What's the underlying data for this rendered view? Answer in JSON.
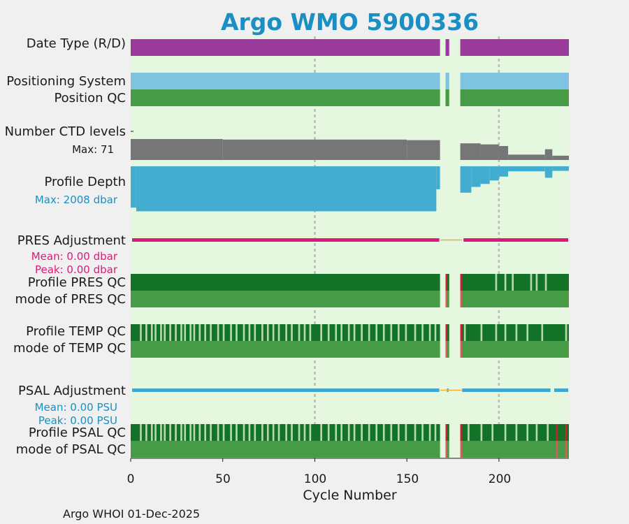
{
  "chart_data": {
    "type": "timeline",
    "title": "Argo WMO 5900336",
    "xlabel": "Cycle Number",
    "xlim": [
      0,
      238
    ],
    "xticks": [
      "0",
      "50",
      "100",
      "150",
      "200"
    ],
    "gridlines_x": [
      100,
      200
    ],
    "footer": "Argo WHOI 01-Dec-2025",
    "colors": {
      "background": "#e5f8df",
      "date_type": "#9a3b99",
      "positioning": "#7ec4e0",
      "qc_good": "#469b46",
      "qc_dark": "#127228",
      "qc_light": "#b6d9ac",
      "qc_bad": "#d21e32",
      "qc_bad_light": "#e05a5a",
      "ctd": "#767676",
      "depth": "#43acd1",
      "pres_adj": "#e3167a",
      "psal_adj": "#3fa8d0",
      "missing_link": "#f0b040",
      "grid": "#bbbbbb"
    },
    "data_gaps": [
      [
        168,
        171
      ],
      [
        173,
        179
      ]
    ],
    "data_gaps_pres_adj": [
      [
        168,
        180
      ]
    ],
    "rows": {
      "date_type": {
        "label": "Date Type (R/D)",
        "value": "D"
      },
      "positioning_system": {
        "label": "Positioning System"
      },
      "position_qc": {
        "label": "Position QC"
      },
      "ctd_levels": {
        "label": "Number CTD levels",
        "max_label": "Max: 71",
        "max": 71,
        "segments": [
          {
            "from": 1,
            "to": 50,
            "value": 39
          },
          {
            "from": 51,
            "to": 100,
            "value": 38
          },
          {
            "from": 101,
            "to": 150,
            "value": 38
          },
          {
            "from": 151,
            "to": 168,
            "value": 37
          },
          {
            "from": 180,
            "to": 190,
            "value": 31
          },
          {
            "from": 191,
            "to": 200,
            "value": 29
          },
          {
            "from": 201,
            "to": 205,
            "value": 26
          },
          {
            "from": 206,
            "to": 225,
            "value": 10
          },
          {
            "from": 226,
            "to": 229,
            "value": 20
          },
          {
            "from": 230,
            "to": 238,
            "value": 8
          }
        ]
      },
      "profile_depth": {
        "label": "Profile Depth",
        "max_label": "Max: 2008 dbar",
        "max": 2008,
        "segments": [
          {
            "from": 1,
            "to": 3,
            "value": 1800
          },
          {
            "from": 4,
            "to": 166,
            "value": 1960
          },
          {
            "from": 167,
            "to": 168,
            "value": 1000
          },
          {
            "from": 180,
            "to": 185,
            "value": 1150
          },
          {
            "from": 186,
            "to": 190,
            "value": 900
          },
          {
            "from": 191,
            "to": 195,
            "value": 770
          },
          {
            "from": 196,
            "to": 200,
            "value": 620
          },
          {
            "from": 201,
            "to": 205,
            "value": 450
          },
          {
            "from": 206,
            "to": 225,
            "value": 220
          },
          {
            "from": 226,
            "to": 229,
            "value": 500
          },
          {
            "from": 230,
            "to": 238,
            "value": 200
          }
        ]
      },
      "pres_adjustment": {
        "label": "PRES Adjustment",
        "mean_label": "Mean: 0.00 dbar",
        "peak_label": "Peak: 0.00 dbar",
        "mean": 0.0,
        "peak": 0.0
      },
      "profile_pres_qc": {
        "label": "Profile PRES QC"
      },
      "mode_pres_qc": {
        "label": "mode of PRES QC"
      },
      "profile_temp_qc": {
        "label": "Profile TEMP QC"
      },
      "mode_temp_qc": {
        "label": "mode of TEMP QC"
      },
      "psal_adjustment": {
        "label": "PSAL Adjustment",
        "mean_label": "Mean: 0.00 PSU",
        "peak_label": "Peak: 0.00 PSU",
        "mean": 0.0,
        "peak": 0.0
      },
      "profile_psal_qc": {
        "label": "Profile PSAL QC"
      },
      "mode_psal_qc": {
        "label": "mode of PSAL QC"
      }
    },
    "bad_cycles": [
      172,
      180
    ],
    "profile_pres_light_cycles": [
      199,
      204,
      208,
      218,
      226,
      221
    ],
    "profile_temp_light_cycles": [
      6,
      9,
      12,
      14,
      17,
      19,
      22,
      25,
      28,
      30,
      33,
      35,
      38,
      41,
      44,
      48,
      51,
      55,
      58,
      62,
      65,
      68,
      72,
      75,
      78,
      81,
      85,
      88,
      92,
      95,
      98,
      104,
      108,
      112,
      115,
      119,
      122,
      126,
      130,
      134,
      138,
      142,
      146,
      150,
      155,
      159,
      163,
      166,
      182,
      191,
      199,
      204,
      210,
      216,
      224,
      237
    ],
    "profile_psal_light_cycles": [
      6,
      9,
      12,
      14,
      17,
      19,
      22,
      25,
      28,
      30,
      33,
      35,
      38,
      41,
      44,
      48,
      51,
      55,
      58,
      62,
      65,
      68,
      72,
      75,
      78,
      81,
      85,
      88,
      92,
      95,
      98,
      104,
      108,
      112,
      115,
      119,
      122,
      126,
      130,
      134,
      138,
      142,
      146,
      150,
      155,
      159,
      163,
      166,
      184,
      191,
      197,
      204,
      210,
      216,
      221,
      227
    ],
    "psal_qc_bad_end_cycles": [
      232,
      237
    ],
    "psal_adj_gap": [
      228,
      230
    ]
  }
}
